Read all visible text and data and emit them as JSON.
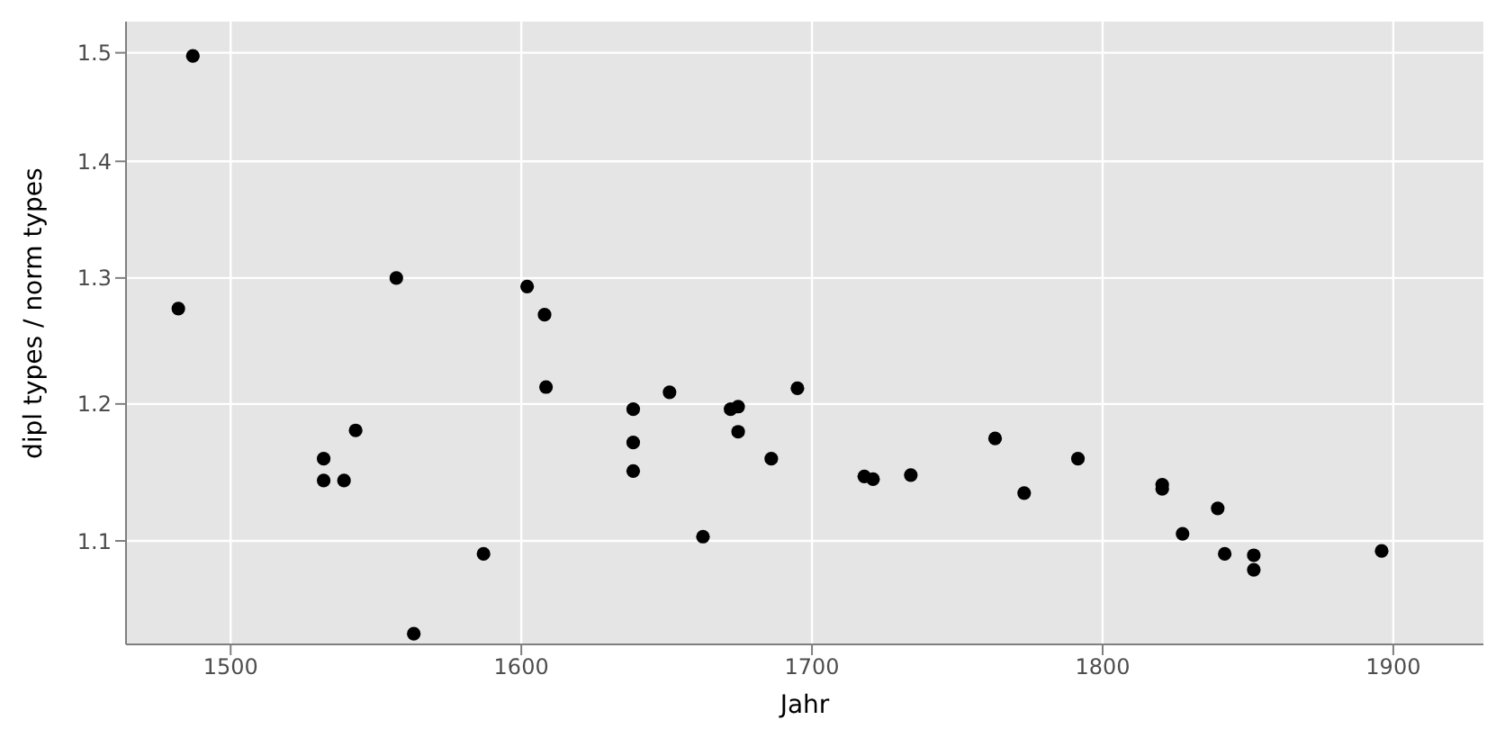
{
  "chart_data": {
    "type": "scatter",
    "xlabel": "Jahr",
    "ylabel": "dipl types / norm types",
    "x": [
      1482,
      1487,
      1532,
      1532,
      1539,
      1543,
      1557,
      1563,
      1587,
      1602,
      1608,
      1608.5,
      1638.5,
      1638.5,
      1638.5,
      1651,
      1662.5,
      1672,
      1674.6,
      1674.6,
      1686,
      1695,
      1718,
      1721,
      1734,
      1763,
      1773,
      1791.5,
      1820.5,
      1820.5,
      1827.5,
      1839.6,
      1842,
      1852,
      1852,
      1896
    ],
    "series": [
      {
        "color": "#000000",
        "values": [
          1.275,
          1.497,
          1.159,
          1.143,
          1.143,
          1.18,
          1.3,
          1.037,
          1.091,
          1.293,
          1.27,
          1.213,
          1.196,
          1.171,
          1.15,
          1.209,
          1.103,
          1.196,
          1.198,
          1.179,
          1.159,
          1.212,
          1.146,
          1.144,
          1.147,
          1.174,
          1.134,
          1.159,
          1.14,
          1.137,
          1.105,
          1.123,
          1.091,
          1.09,
          1.08,
          1.093
        ]
      }
    ],
    "xlim": [
      1464,
      1931
    ],
    "xticks": [
      1500,
      1600,
      1700,
      1800,
      1900
    ],
    "ylim": [
      1.03,
      1.53
    ],
    "yticks": [
      1.1,
      1.2,
      1.3,
      1.4,
      1.5
    ],
    "log": "y",
    "grid": true,
    "marker": "circle"
  }
}
